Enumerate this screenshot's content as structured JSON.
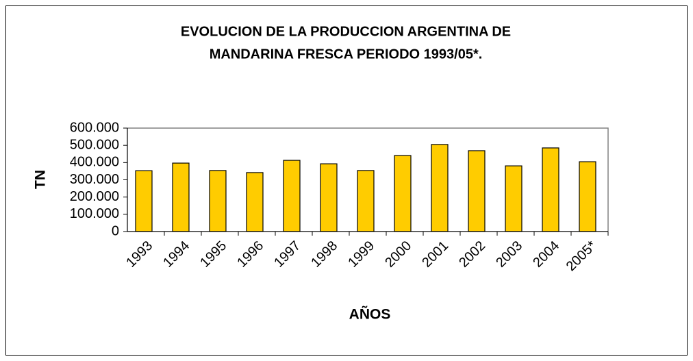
{
  "chart_data": {
    "type": "bar",
    "title": [
      "EVOLUCION DE LA PRODUCCION ARGENTINA DE",
      "MANDARINA FRESCA PERIODO 1993/05*."
    ],
    "x_label": "AÑOS",
    "y_label": "TN",
    "categories": [
      "1993",
      "1994",
      "1995",
      "1996",
      "1997",
      "1998",
      "1999",
      "2000",
      "2001",
      "2002",
      "2003",
      "2004",
      "2005*"
    ],
    "values": [
      353000,
      397000,
      354000,
      342000,
      413000,
      393000,
      354000,
      441000,
      505000,
      469000,
      381000,
      485000,
      405000
    ],
    "color": "#ffcc00",
    "ylim": [
      0,
      600000
    ],
    "yticks": [
      0,
      {
        "value": 100000,
        "label": "100.000"
      },
      {
        "value": 200000,
        "label": "200.000"
      },
      {
        "value": 300000,
        "label": "300.000"
      },
      {
        "value": 400000,
        "label": "400.000"
      },
      {
        "value": 500000,
        "label": "500.000"
      },
      {
        "value": 600000,
        "label": "600.000"
      }
    ],
    "grid": false
  }
}
